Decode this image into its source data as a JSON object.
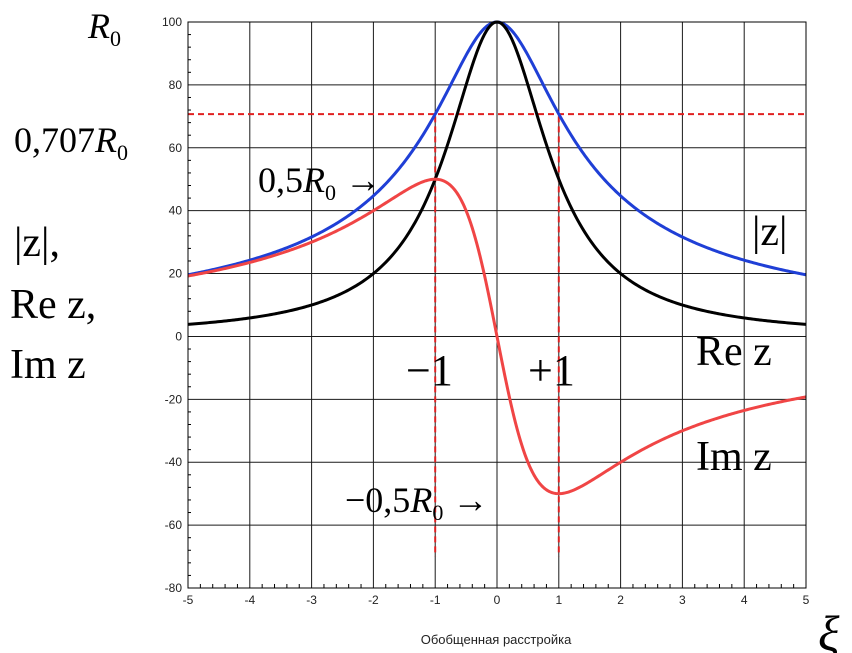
{
  "chart_data": {
    "type": "line",
    "xlabel": "Обобщенная расстройка",
    "x_symbol": "ξ",
    "xlim": [
      -5,
      5
    ],
    "ylim": [
      -80,
      100
    ],
    "xticks": [
      -5,
      -4,
      -3,
      -2,
      -1,
      0,
      1,
      2,
      3,
      4,
      5
    ],
    "yticks": [
      100,
      80,
      60,
      40,
      20,
      0,
      -20,
      -40,
      -60,
      -80
    ],
    "grid": true,
    "R0": 100,
    "x": [
      -5,
      -4.5,
      -4,
      -3.5,
      -3,
      -2.5,
      -2,
      -1.5,
      -1,
      -0.75,
      -0.5,
      -0.25,
      0,
      0.25,
      0.5,
      0.75,
      1,
      1.5,
      2,
      2.5,
      3,
      3.5,
      4,
      4.5,
      5
    ],
    "series": [
      {
        "name": "|z|",
        "color": "#1f3fd6",
        "values": [
          19.6,
          21.7,
          24.3,
          27.5,
          31.6,
          37.1,
          44.7,
          55.5,
          70.7,
          80.0,
          89.4,
          97.0,
          100,
          97.0,
          89.4,
          80.0,
          70.7,
          55.5,
          44.7,
          37.1,
          31.6,
          27.5,
          24.3,
          21.7,
          19.6
        ]
      },
      {
        "name": "Re z",
        "color": "#000000",
        "values": [
          3.8,
          4.7,
          5.9,
          7.5,
          10.0,
          13.8,
          20.0,
          30.8,
          50.0,
          64.0,
          80.0,
          94.1,
          100,
          94.1,
          80.0,
          64.0,
          50.0,
          30.8,
          20.0,
          13.8,
          10.0,
          7.5,
          5.9,
          4.7,
          3.8
        ]
      },
      {
        "name": "Im z",
        "color": "#f04545",
        "values": [
          19.2,
          21.2,
          23.5,
          26.4,
          30.0,
          34.5,
          40.0,
          46.2,
          50.0,
          48.0,
          40.0,
          23.5,
          0,
          -23.5,
          -40.0,
          -48.0,
          -50.0,
          -46.2,
          -40.0,
          -34.5,
          -30.0,
          -26.4,
          -23.5,
          -21.2,
          -19.2
        ]
      }
    ],
    "reference_lines": [
      {
        "orientation": "horizontal",
        "y": 70.7,
        "color": "#e02020",
        "style": "dashed"
      },
      {
        "orientation": "vertical",
        "x": -1,
        "color": "#e02020",
        "style": "dashed"
      },
      {
        "orientation": "vertical",
        "x": 1,
        "color": "#e02020",
        "style": "dashed"
      }
    ]
  },
  "labels": {
    "r0": "R0",
    "r0_707": "0,707R0",
    "half_r0": "0,5R0 →",
    "neg_half_r0": "−0,5R0 →",
    "left_axis": [
      "|z|,",
      "Re z,",
      "Im z"
    ],
    "minus_one": "−1",
    "plus_one": "+1",
    "abs_z": "|z|",
    "re_z": "Re z",
    "im_z": "Im z"
  }
}
